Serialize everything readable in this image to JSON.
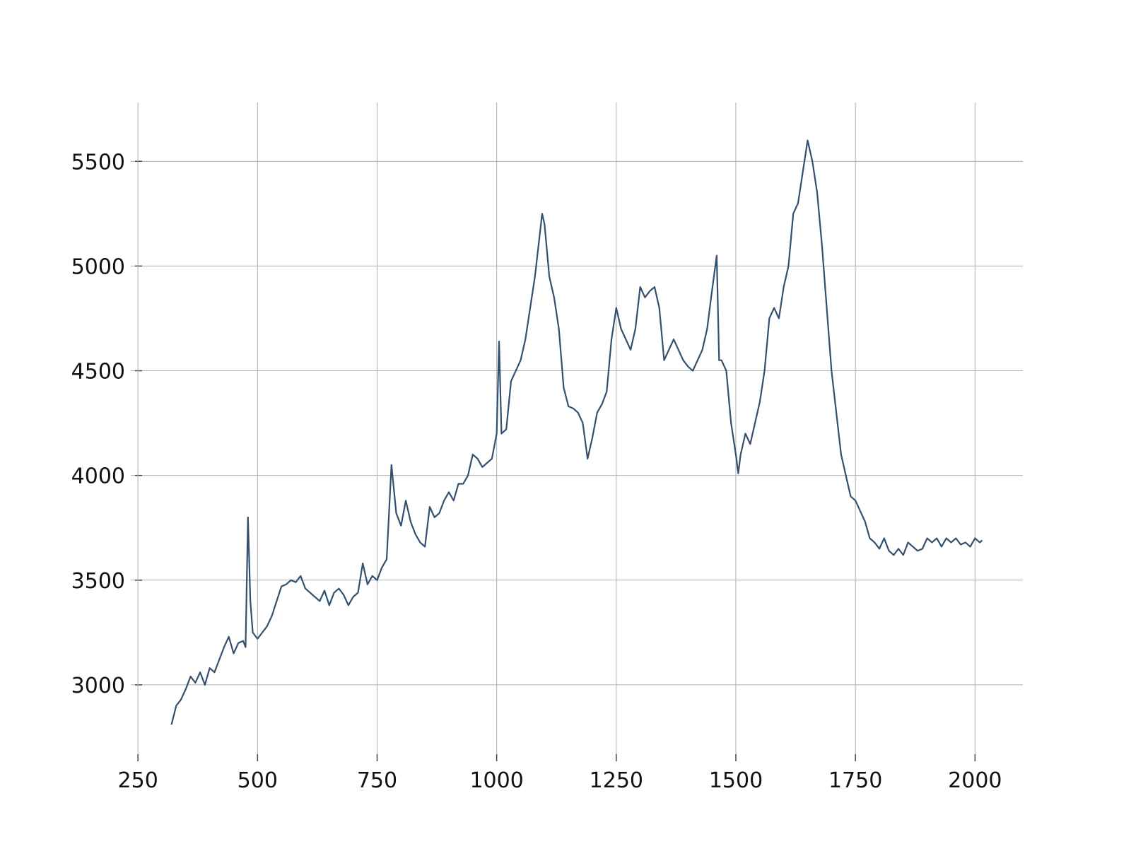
{
  "chart_data": {
    "type": "line",
    "x": [
      320,
      330,
      340,
      350,
      360,
      370,
      380,
      390,
      400,
      410,
      420,
      430,
      440,
      450,
      460,
      470,
      475,
      480,
      485,
      490,
      500,
      510,
      520,
      530,
      540,
      550,
      560,
      570,
      580,
      590,
      600,
      610,
      620,
      630,
      640,
      650,
      660,
      670,
      680,
      690,
      700,
      710,
      720,
      730,
      740,
      750,
      760,
      770,
      780,
      790,
      800,
      810,
      820,
      830,
      840,
      850,
      860,
      870,
      880,
      890,
      900,
      910,
      920,
      930,
      940,
      950,
      960,
      970,
      980,
      990,
      1000,
      1005,
      1010,
      1020,
      1030,
      1040,
      1050,
      1060,
      1070,
      1080,
      1090,
      1095,
      1100,
      1110,
      1120,
      1130,
      1140,
      1150,
      1160,
      1170,
      1180,
      1190,
      1200,
      1210,
      1220,
      1230,
      1240,
      1250,
      1260,
      1270,
      1280,
      1290,
      1300,
      1310,
      1320,
      1330,
      1340,
      1350,
      1360,
      1370,
      1380,
      1390,
      1400,
      1410,
      1420,
      1430,
      1440,
      1450,
      1460,
      1465,
      1470,
      1480,
      1490,
      1500,
      1505,
      1510,
      1520,
      1530,
      1540,
      1550,
      1560,
      1570,
      1580,
      1590,
      1600,
      1610,
      1620,
      1630,
      1640,
      1650,
      1660,
      1670,
      1680,
      1690,
      1700,
      1710,
      1720,
      1730,
      1740,
      1750,
      1760,
      1770,
      1780,
      1790,
      1800,
      1810,
      1820,
      1830,
      1840,
      1850,
      1860,
      1870,
      1880,
      1890,
      1900,
      1910,
      1920,
      1930,
      1940,
      1950,
      1960,
      1970,
      1980,
      1990,
      2000,
      2010,
      2015
    ],
    "series": [
      {
        "color": "#34506f",
        "values": [
          2810,
          2900,
          2930,
          2980,
          3040,
          3010,
          3060,
          3000,
          3080,
          3060,
          3120,
          3180,
          3230,
          3150,
          3200,
          3210,
          3180,
          3800,
          3400,
          3250,
          3220,
          3250,
          3280,
          3330,
          3400,
          3470,
          3480,
          3500,
          3490,
          3520,
          3460,
          3440,
          3420,
          3400,
          3450,
          3380,
          3440,
          3460,
          3430,
          3380,
          3420,
          3440,
          3580,
          3480,
          3520,
          3500,
          3560,
          3600,
          4050,
          3820,
          3760,
          3880,
          3780,
          3720,
          3680,
          3660,
          3850,
          3800,
          3820,
          3880,
          3920,
          3880,
          3960,
          3960,
          4000,
          4100,
          4080,
          4040,
          4060,
          4080,
          4200,
          4640,
          4200,
          4220,
          4450,
          4500,
          4550,
          4650,
          4800,
          4950,
          5150,
          5250,
          5200,
          4950,
          4850,
          4700,
          4420,
          4330,
          4320,
          4300,
          4250,
          4080,
          4180,
          4300,
          4340,
          4400,
          4650,
          4800,
          4700,
          4650,
          4600,
          4700,
          4900,
          4850,
          4880,
          4900,
          4800,
          4550,
          4600,
          4650,
          4600,
          4550,
          4520,
          4500,
          4550,
          4600,
          4700,
          4880,
          5050,
          4550,
          4550,
          4500,
          4250,
          4100,
          4010,
          4100,
          4200,
          4150,
          4250,
          4350,
          4500,
          4750,
          4800,
          4750,
          4900,
          5000,
          5250,
          5300,
          5450,
          5600,
          5500,
          5350,
          5100,
          4800,
          4500,
          4300,
          4100,
          4000,
          3900,
          3880,
          3830,
          3780,
          3700,
          3680,
          3650,
          3700,
          3640,
          3620,
          3650,
          3620,
          3680,
          3660,
          3640,
          3650,
          3700,
          3680,
          3700,
          3660,
          3700,
          3680,
          3700,
          3670,
          3680,
          3660,
          3700,
          3680,
          3690
        ]
      }
    ],
    "xlim": [
      235,
      2100
    ],
    "ylim": [
      2669,
      5781
    ],
    "xticks": [
      250,
      500,
      750,
      1000,
      1250,
      1500,
      1750,
      2000
    ],
    "yticks": [
      3000,
      3500,
      4000,
      4500,
      5000,
      5500
    ],
    "grid": true
  }
}
